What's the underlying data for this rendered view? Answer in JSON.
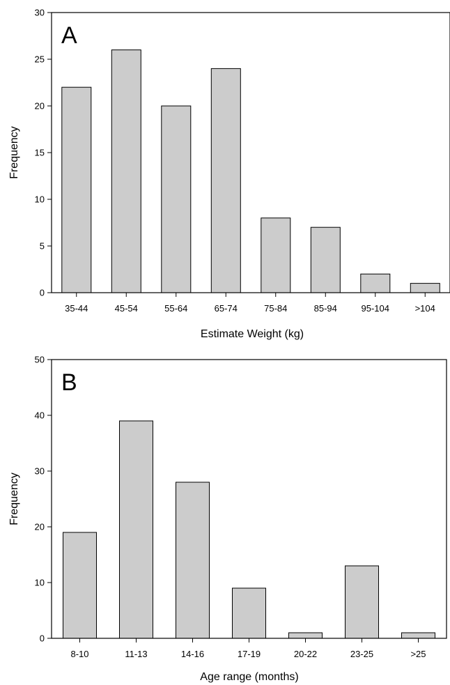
{
  "chart_data": [
    {
      "type": "bar",
      "panel_label": "A",
      "categories": [
        "35-44",
        "45-54",
        "55-64",
        "65-74",
        "75-84",
        "85-94",
        "95-104",
        ">104"
      ],
      "values": [
        22,
        26,
        20,
        24,
        8,
        7,
        2,
        1
      ],
      "xlabel": "Estimate Weight (kg)",
      "ylabel": "Frequency",
      "ylim": [
        0,
        30
      ],
      "yticks": [
        0,
        5,
        10,
        15,
        20,
        25,
        30
      ],
      "bar_color": "#cccccc",
      "grid": false
    },
    {
      "type": "bar",
      "panel_label": "B",
      "categories": [
        "8-10",
        "11-13",
        "14-16",
        "17-19",
        "20-22",
        "23-25",
        ">25"
      ],
      "values": [
        19,
        39,
        28,
        9,
        1,
        13,
        1
      ],
      "xlabel": "Age range (months)",
      "ylabel": "Frequency",
      "ylim": [
        0,
        50
      ],
      "yticks": [
        0,
        10,
        20,
        30,
        40,
        50
      ],
      "bar_color": "#cccccc",
      "grid": false
    }
  ]
}
